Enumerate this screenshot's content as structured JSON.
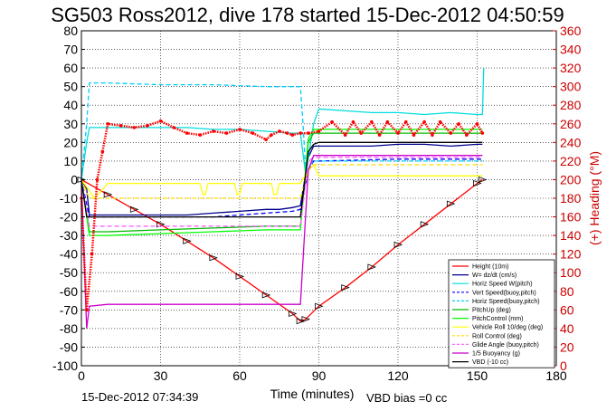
{
  "chart_data": {
    "type": "line",
    "title": "SG503 Ross2012, dive 178 started 15-Dec-2012 04:50:59",
    "xlabel": "Time (minutes)",
    "ylabel_right": "(+) Heading (°M)",
    "xlim": [
      0,
      180
    ],
    "ylim": [
      -100,
      80
    ],
    "y2lim": [
      0,
      360
    ],
    "xticks": [
      "0",
      "30",
      "60",
      "90",
      "120",
      "150",
      "180"
    ],
    "yticks": [
      "80",
      "70",
      "60",
      "50",
      "40",
      "30",
      "20",
      "10",
      "0",
      "-10",
      "-20",
      "-30",
      "-40",
      "-50",
      "-60",
      "-70",
      "-80",
      "-90",
      "-100"
    ],
    "y2ticks": [
      "360",
      "340",
      "320",
      "300",
      "280",
      "260",
      "240",
      "220",
      "200",
      "180",
      "160",
      "140",
      "120",
      "100",
      "80",
      "60",
      "40",
      "20",
      "0"
    ],
    "grid": true,
    "legend_position": "bottom-right",
    "series": [
      {
        "name": "Height (10m)",
        "color": "#ff0000",
        "style": "solid",
        "marker": "triangle",
        "x": [
          0,
          10,
          20,
          30,
          40,
          50,
          60,
          70,
          80,
          83,
          85,
          90,
          100,
          110,
          120,
          130,
          140,
          150,
          152
        ],
        "y": [
          0,
          -8,
          -16,
          -24,
          -33,
          -42,
          -52,
          -62,
          -72,
          -76,
          -75,
          -68,
          -58,
          -47,
          -35,
          -24,
          -13,
          -2,
          0
        ]
      },
      {
        "name": "W= dz/dt (cm/s)",
        "color": "#00008b",
        "style": "solid",
        "x": [
          0,
          2,
          3,
          10,
          20,
          30,
          40,
          50,
          60,
          70,
          75,
          80,
          83,
          86,
          88,
          90,
          100,
          110,
          120,
          130,
          140,
          150,
          152
        ],
        "y": [
          0,
          -5,
          -19,
          -19,
          -19,
          -19,
          -19,
          -18,
          -17,
          -16,
          -16,
          -15,
          -14,
          12,
          18,
          18,
          18,
          18,
          19,
          19,
          18,
          19,
          19
        ]
      },
      {
        "name": "Horiz Speed W(pitch)",
        "color": "#00dddd",
        "style": "solid",
        "x": [
          0,
          2,
          3,
          10,
          20,
          30,
          40,
          50,
          60,
          70,
          80,
          83,
          85,
          88,
          90,
          100,
          110,
          120,
          130,
          140,
          150,
          152,
          152.5
        ],
        "y": [
          0,
          20,
          28,
          28,
          28,
          28,
          28,
          27,
          27,
          26,
          25,
          25,
          3,
          30,
          38,
          37,
          36,
          36,
          35,
          36,
          35,
          35,
          60
        ]
      },
      {
        "name": "Vert Speed(buoy,pitch)",
        "color": "#0000ff",
        "style": "dashed",
        "x": [
          0,
          3,
          10,
          30,
          50,
          70,
          80,
          83,
          86,
          88,
          90,
          120,
          150,
          152
        ],
        "y": [
          0,
          -20,
          -20,
          -20,
          -20,
          -18,
          -17,
          -16,
          5,
          10,
          10,
          11,
          11,
          11
        ]
      },
      {
        "name": "Horiz Speed(buoy,pitch)",
        "color": "#00ccff",
        "style": "dashed",
        "x": [
          0,
          2,
          3,
          10,
          30,
          50,
          70,
          80,
          83,
          84,
          85,
          88,
          90,
          120,
          150,
          152
        ],
        "y": [
          0,
          30,
          52,
          52,
          51,
          51,
          50,
          50,
          50,
          30,
          5,
          10,
          10,
          10,
          10,
          10
        ]
      },
      {
        "name": "PitchUp (deg)",
        "color": "#00bb00",
        "style": "solid",
        "x": [
          0,
          3,
          10,
          30,
          50,
          70,
          80,
          83,
          86,
          88,
          90,
          120,
          150,
          152
        ],
        "y": [
          0,
          -28,
          -28,
          -27,
          -26,
          -25,
          -25,
          -25,
          20,
          25,
          25,
          25,
          25,
          25
        ]
      },
      {
        "name": "PitchControl (mm)",
        "color": "#00ff00",
        "style": "solid",
        "x": [
          0,
          3,
          10,
          30,
          50,
          70,
          80,
          83,
          86,
          88,
          90,
          120,
          150,
          152
        ],
        "y": [
          0,
          -30,
          -30,
          -29,
          -28,
          -27,
          -27,
          -27,
          22,
          27,
          27,
          27,
          27,
          27
        ]
      },
      {
        "name": "Vehicle Roll 10/deg (deg)",
        "color": "#ffff00",
        "style": "solid",
        "x": [
          0,
          5,
          10,
          30,
          45,
          46,
          47,
          48,
          58,
          59,
          60,
          61,
          72,
          73,
          74,
          75,
          80,
          83,
          86,
          88,
          90,
          120,
          150,
          152
        ],
        "y": [
          0,
          -10,
          -2,
          -2,
          -2,
          -8,
          -8,
          -2,
          -2,
          -8,
          -8,
          -2,
          -2,
          -8,
          -8,
          -2,
          -2,
          -2,
          5,
          8,
          2,
          2,
          2,
          2
        ]
      },
      {
        "name": "Roll Control (deg)",
        "color": "#ffdd00",
        "style": "dashed",
        "x": [
          0,
          3,
          10,
          30,
          50,
          70,
          80,
          83,
          86,
          88,
          90,
          120,
          150,
          152
        ],
        "y": [
          0,
          -10,
          -10,
          -10,
          -10,
          -10,
          -10,
          -10,
          5,
          8,
          8,
          8,
          8,
          8
        ]
      },
      {
        "name": "Glide Angle (buoy,pitch)",
        "color": "#ff66ff",
        "style": "dashed",
        "x": [
          0,
          3,
          10,
          30,
          50,
          70,
          80,
          83,
          86,
          88,
          90,
          120,
          150,
          152
        ],
        "y": [
          0,
          -25,
          -25,
          -25,
          -25,
          -25,
          -25,
          -25,
          10,
          12,
          12,
          12,
          12,
          12
        ]
      },
      {
        "name": "1/5 Buoyancy (g)",
        "color": "#cc00cc",
        "style": "solid",
        "x": [
          0,
          2,
          3,
          10,
          30,
          50,
          70,
          80,
          82,
          83,
          86,
          88,
          90,
          120,
          150,
          152
        ],
        "y": [
          0,
          -80,
          -68,
          -67,
          -67,
          -67,
          -67,
          -67,
          -67,
          -67,
          5,
          13,
          13,
          13,
          13,
          13
        ]
      },
      {
        "name": "VBD (-10 cc)",
        "color": "#000000",
        "style": "solid",
        "x": [
          0,
          2,
          10,
          30,
          50,
          70,
          80,
          83,
          86,
          88,
          90,
          120,
          150,
          152
        ],
        "y": [
          0,
          -20,
          -20,
          -20,
          -20,
          -20,
          -20,
          -20,
          15,
          19,
          20,
          20,
          20,
          20
        ]
      },
      {
        "name": "Heading",
        "axis": "right",
        "color": "#ff0000",
        "style": "dots",
        "x": [
          0,
          2,
          4,
          6,
          8,
          10,
          15,
          20,
          25,
          30,
          35,
          40,
          45,
          50,
          55,
          60,
          65,
          70,
          72,
          75,
          78,
          80,
          83,
          86,
          90,
          95,
          100,
          103,
          106,
          110,
          113,
          116,
          120,
          123,
          126,
          130,
          133,
          136,
          140,
          143,
          146,
          150,
          152
        ],
        "y": [
          180,
          60,
          120,
          200,
          230,
          260,
          258,
          256,
          258,
          263,
          256,
          250,
          248,
          252,
          250,
          254,
          250,
          243,
          248,
          252,
          250,
          248,
          250,
          250,
          252,
          262,
          248,
          262,
          250,
          262,
          248,
          262,
          250,
          262,
          248,
          262,
          248,
          262,
          250,
          260,
          248,
          260,
          250
        ]
      }
    ]
  },
  "footer": {
    "timestamp": "15-Dec-2012 07:34:39",
    "vbd_bias": "VBD bias =0 cc"
  }
}
